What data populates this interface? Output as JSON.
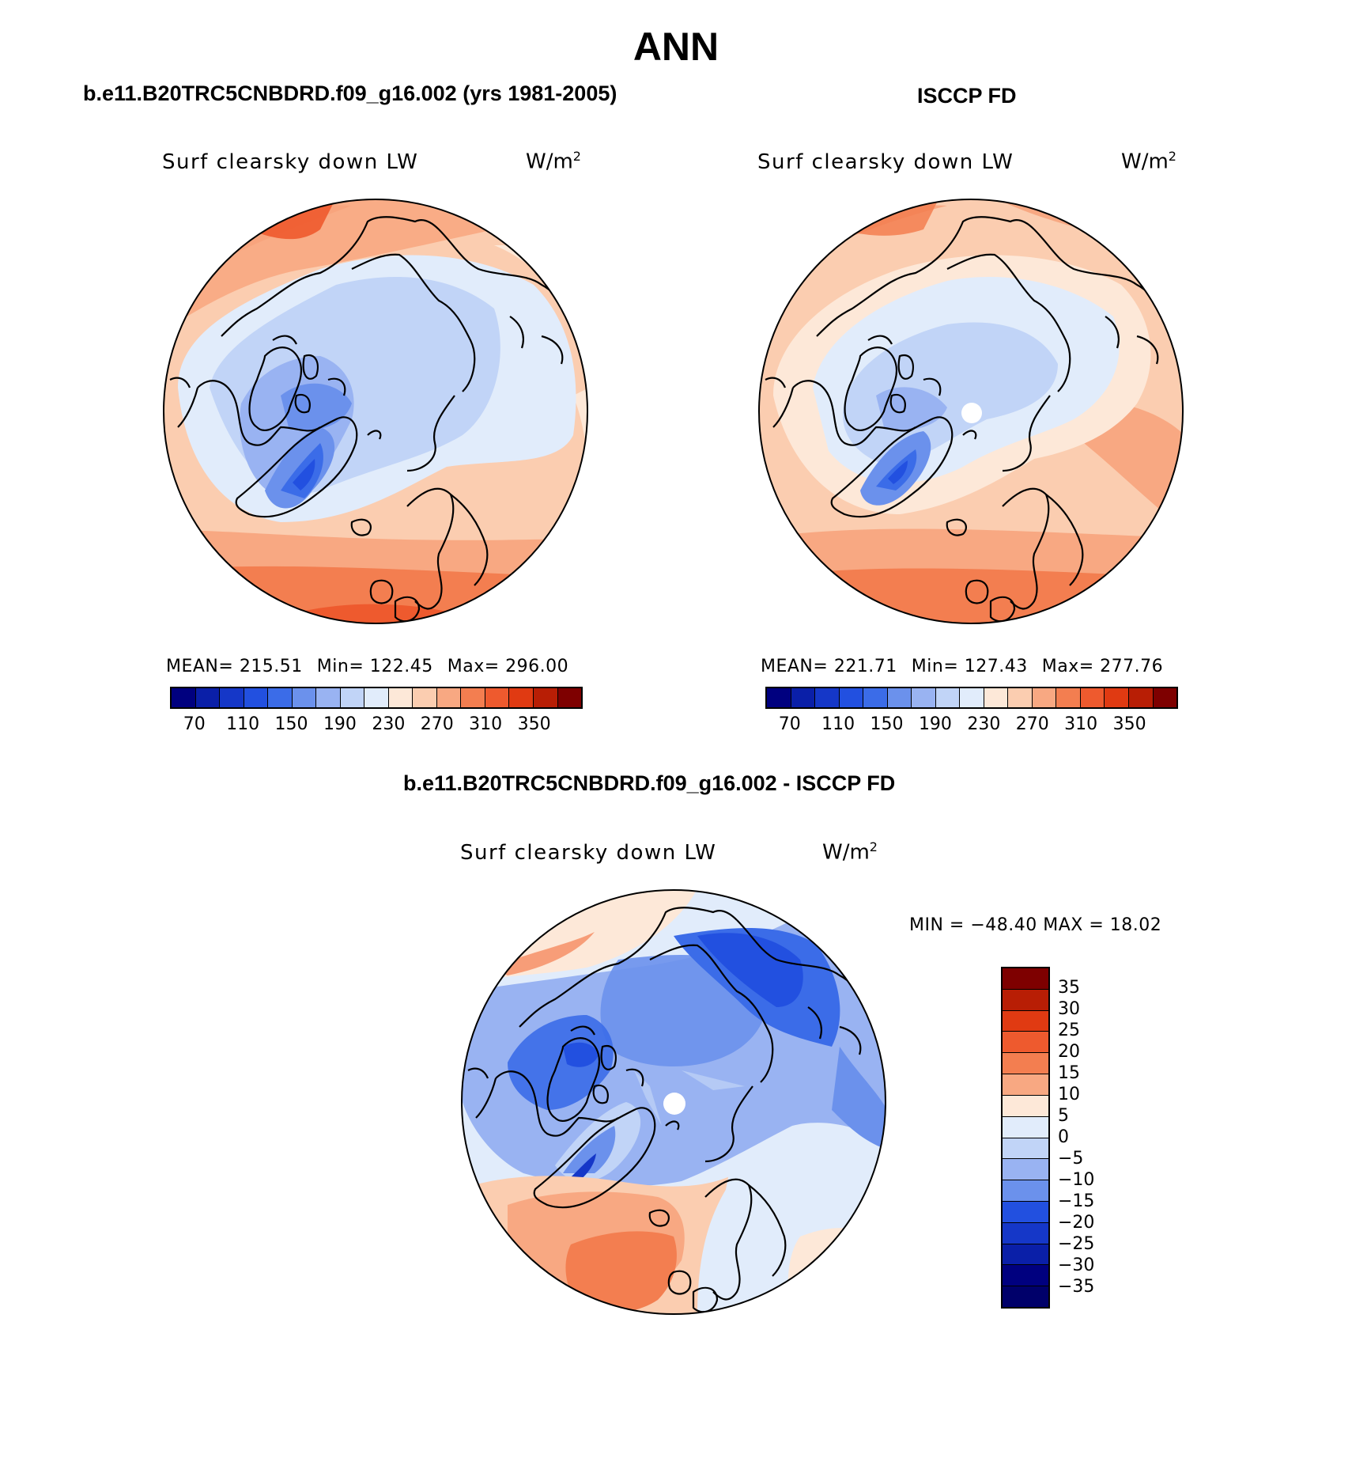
{
  "page_title": "ANN",
  "panels": {
    "model": {
      "subtitle": "b.e11.B20TRC5CNBDRD.f09_g16.002 (yrs 1981-2005)",
      "variable": "Surf clearsky down LW",
      "units": "W/m",
      "units_exp": "2",
      "stats": {
        "mean": "MEAN= 215.51",
        "min": "Min= 122.45",
        "max": "Max= 296.00"
      }
    },
    "obs": {
      "subtitle": "ISCCP FD",
      "variable": "Surf clearsky down LW",
      "units": "W/m",
      "units_exp": "2",
      "stats": {
        "mean": "MEAN= 221.71",
        "min": "Min= 127.43",
        "max": "Max= 277.76"
      }
    },
    "diff": {
      "subtitle": "b.e11.B20TRC5CNBDRD.f09_g16.002 - ISCCP FD",
      "variable": "Surf clearsky down LW",
      "units": "W/m",
      "units_exp": "2",
      "minmax": "MIN = −48.40 MAX =  18.02"
    }
  },
  "field_colorbar": {
    "colors": [
      "#00007f",
      "#0a1fa8",
      "#1537c8",
      "#2250e0",
      "#3b6ce8",
      "#6b91ec",
      "#99b3f2",
      "#c1d4f7",
      "#e1ecfb",
      "#fde8d8",
      "#fbcdb0",
      "#f8a882",
      "#f37e50",
      "#ee5a2e",
      "#e03a12",
      "#b81e05",
      "#7e0000"
    ],
    "tick_labels": [
      "70",
      "110",
      "150",
      "190",
      "230",
      "270",
      "310",
      "350"
    ]
  },
  "diff_colorbar": {
    "colors": [
      "#7e0000",
      "#b81e05",
      "#e03a12",
      "#ee5a2e",
      "#f37e50",
      "#f8a882",
      "#fde8d8",
      "#e1ecfb",
      "#c1d4f7",
      "#99b3f2",
      "#6b91ec",
      "#2250e0",
      "#1537c8",
      "#0a1fa8",
      "#00007f",
      "#00006a"
    ],
    "tick_labels": [
      "35",
      "30",
      "25",
      "20",
      "15",
      "10",
      "5",
      "0",
      "−5",
      "−10",
      "−15",
      "−20",
      "−25",
      "−30",
      "−35"
    ]
  }
}
